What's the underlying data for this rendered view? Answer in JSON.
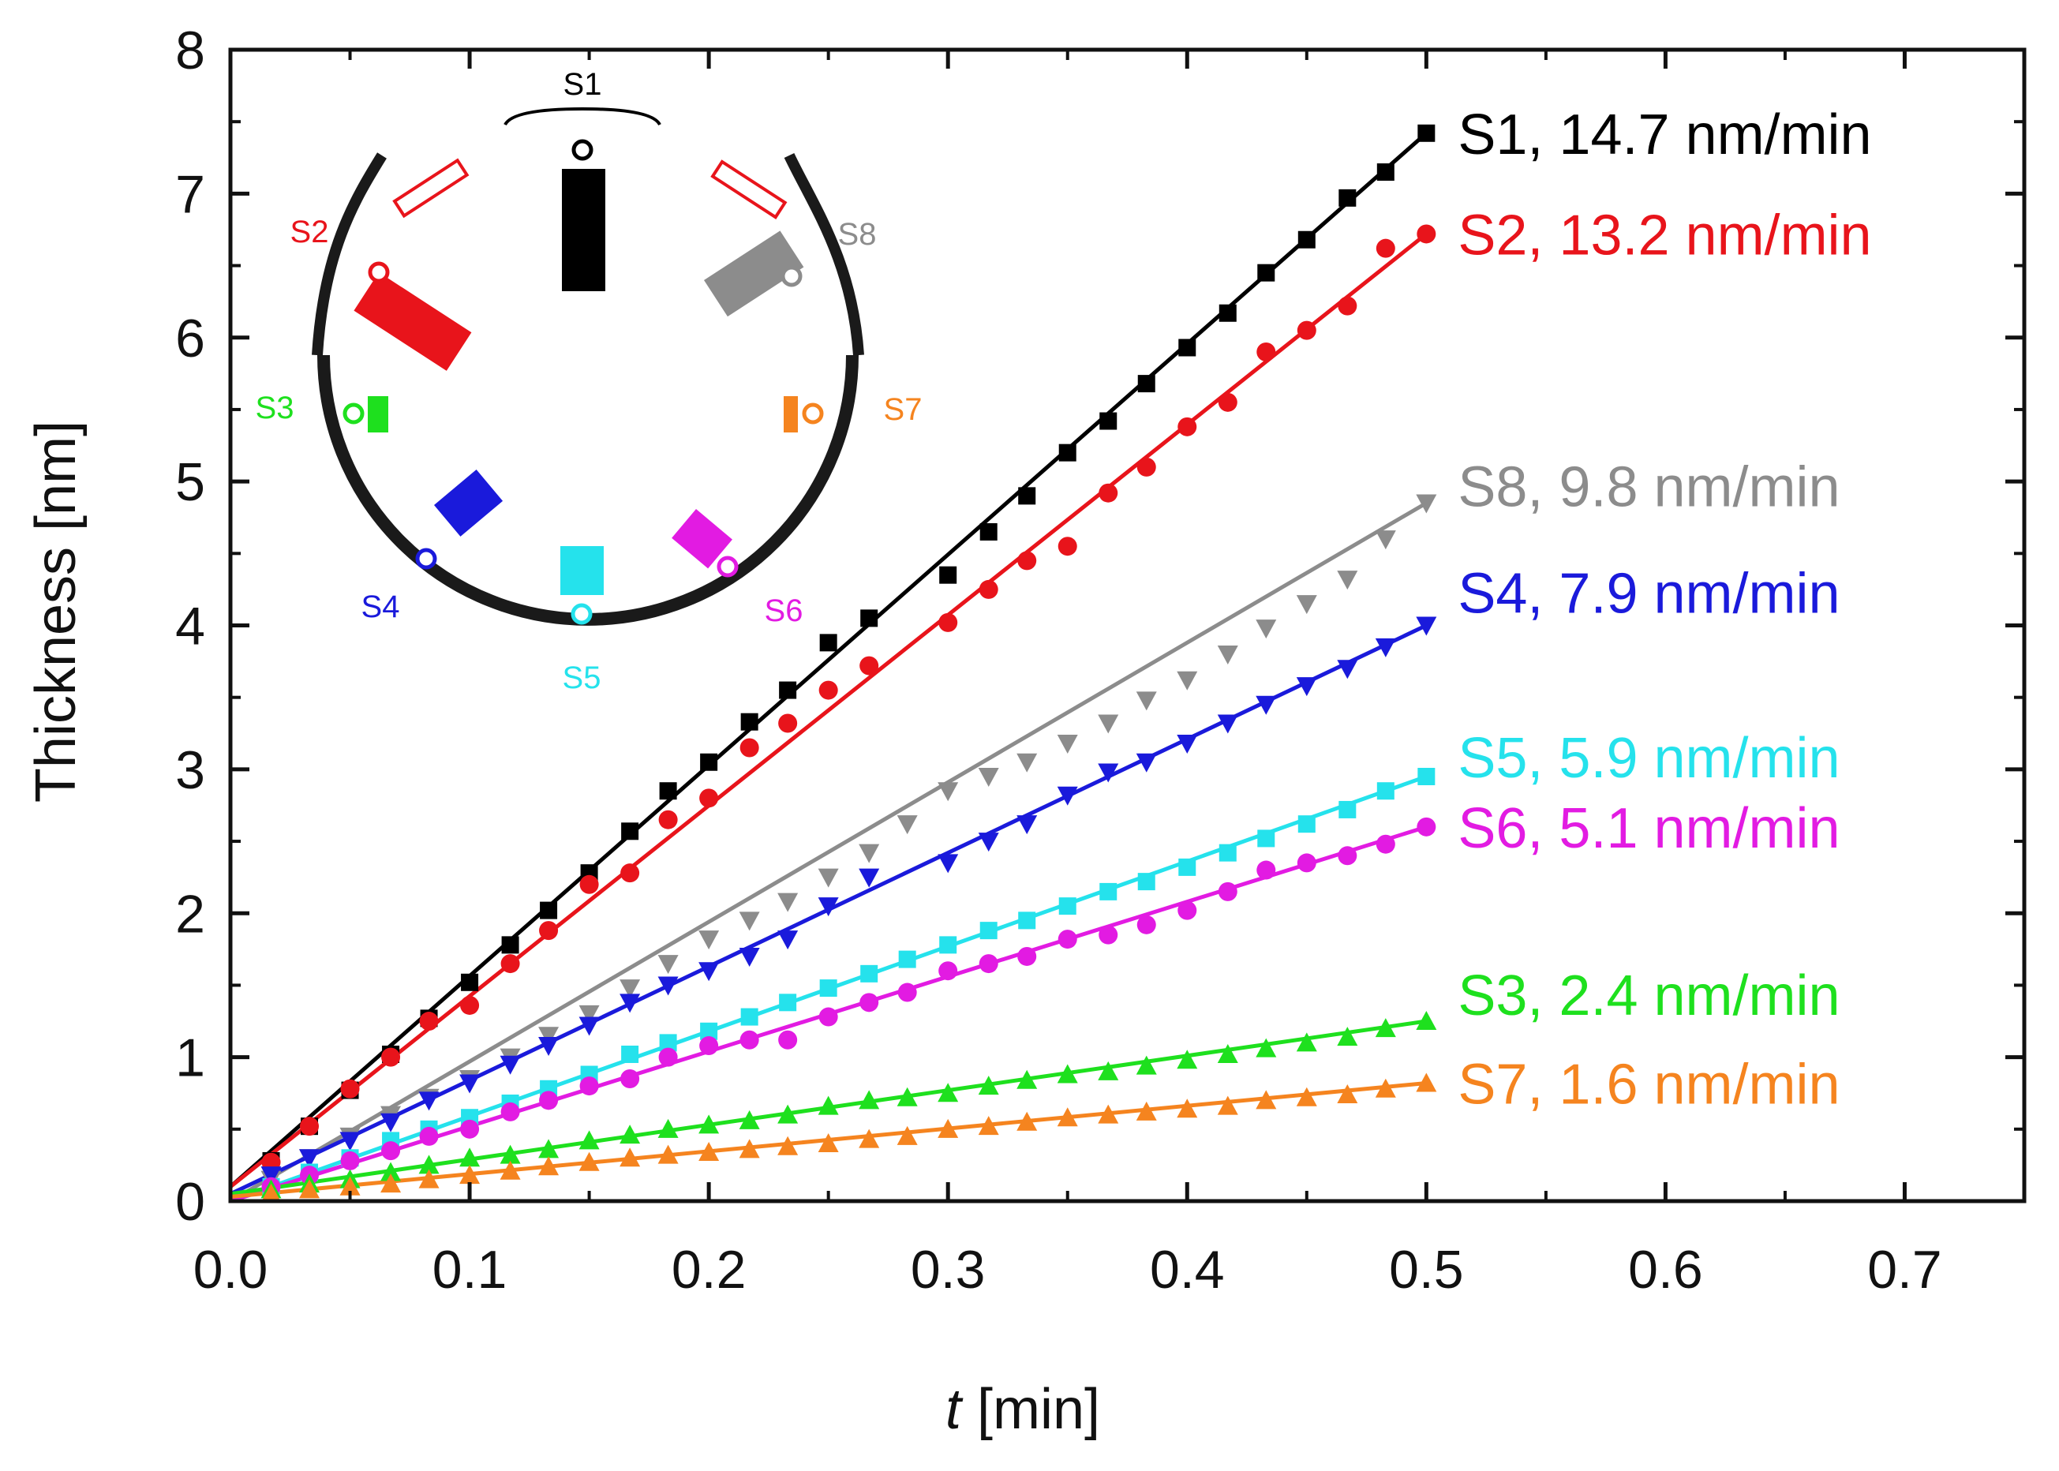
{
  "chart_data": {
    "type": "scatter",
    "title": "",
    "xlabel": {
      "italic": "t",
      "rest": " [min]"
    },
    "ylabel": "Thickness [nm]",
    "xlim": [
      0,
      0.75
    ],
    "ylim": [
      0,
      8
    ],
    "x_ticks": [
      "0.0",
      "0.1",
      "0.2",
      "0.3",
      "0.4",
      "0.5",
      "0.6",
      "0.7"
    ],
    "y_ticks": [
      "0",
      "1",
      "2",
      "3",
      "4",
      "5",
      "6",
      "7",
      "8"
    ],
    "grid": false,
    "series": [
      {
        "name": "S1",
        "label": "S1, 14.7 nm/min",
        "rate_nm_per_min": 14.7,
        "intercept": 0.1,
        "color": "#000000",
        "marker": "square",
        "x": [
          0.017,
          0.033,
          0.05,
          0.067,
          0.083,
          0.1,
          0.117,
          0.133,
          0.15,
          0.167,
          0.183,
          0.2,
          0.217,
          0.233,
          0.25,
          0.267,
          0.3,
          0.317,
          0.333,
          0.35,
          0.367,
          0.383,
          0.4,
          0.417,
          0.433,
          0.45,
          0.467,
          0.483,
          0.5
        ],
        "y": [
          0.28,
          0.52,
          0.77,
          1.02,
          1.27,
          1.52,
          1.78,
          2.02,
          2.28,
          2.57,
          2.85,
          3.05,
          3.33,
          3.55,
          3.88,
          4.05,
          4.35,
          4.65,
          4.9,
          5.2,
          5.42,
          5.68,
          5.93,
          6.17,
          6.45,
          6.68,
          6.97,
          7.15,
          7.42
        ]
      },
      {
        "name": "S2",
        "label": "S2, 13.2 nm/min",
        "rate_nm_per_min": 13.2,
        "intercept": 0.1,
        "color": "#e8141b",
        "marker": "circle",
        "x": [
          0.017,
          0.033,
          0.05,
          0.067,
          0.083,
          0.1,
          0.117,
          0.133,
          0.15,
          0.167,
          0.183,
          0.2,
          0.217,
          0.233,
          0.25,
          0.267,
          0.3,
          0.317,
          0.333,
          0.35,
          0.367,
          0.383,
          0.4,
          0.417,
          0.433,
          0.45,
          0.467,
          0.483,
          0.5
        ],
        "y": [
          0.27,
          0.52,
          0.78,
          1.0,
          1.25,
          1.36,
          1.65,
          1.88,
          2.2,
          2.28,
          2.65,
          2.8,
          3.15,
          3.32,
          3.55,
          3.72,
          4.02,
          4.25,
          4.45,
          4.55,
          4.92,
          5.1,
          5.38,
          5.55,
          5.9,
          6.05,
          6.22,
          6.62,
          6.72
        ]
      },
      {
        "name": "S8",
        "label": "S8, 9.8 nm/min",
        "rate_nm_per_min": 9.8,
        "intercept": 0.0,
        "color": "#8c8c8c",
        "marker": "triangle-down",
        "x": [
          0.017,
          0.033,
          0.05,
          0.067,
          0.083,
          0.1,
          0.117,
          0.133,
          0.15,
          0.167,
          0.183,
          0.2,
          0.217,
          0.233,
          0.25,
          0.267,
          0.283,
          0.3,
          0.317,
          0.333,
          0.35,
          0.367,
          0.383,
          0.4,
          0.417,
          0.433,
          0.45,
          0.467,
          0.483,
          0.5
        ],
        "y": [
          0.15,
          0.3,
          0.45,
          0.6,
          0.72,
          0.85,
          1.0,
          1.15,
          1.3,
          1.48,
          1.65,
          1.82,
          1.95,
          2.08,
          2.25,
          2.42,
          2.62,
          2.85,
          2.95,
          3.05,
          3.18,
          3.32,
          3.48,
          3.62,
          3.8,
          3.98,
          4.15,
          4.32,
          4.6,
          4.85
        ]
      },
      {
        "name": "S4",
        "label": "S4, 7.9 nm/min",
        "rate_nm_per_min": 7.9,
        "intercept": 0.05,
        "color": "#1a1adb",
        "marker": "triangle-down",
        "x": [
          0.017,
          0.033,
          0.05,
          0.067,
          0.083,
          0.1,
          0.117,
          0.133,
          0.15,
          0.167,
          0.183,
          0.2,
          0.217,
          0.233,
          0.25,
          0.267,
          0.3,
          0.317,
          0.333,
          0.35,
          0.367,
          0.383,
          0.4,
          0.417,
          0.433,
          0.45,
          0.467,
          0.483,
          0.5
        ],
        "y": [
          0.18,
          0.3,
          0.42,
          0.55,
          0.7,
          0.82,
          0.95,
          1.08,
          1.22,
          1.38,
          1.5,
          1.6,
          1.7,
          1.82,
          2.05,
          2.25,
          2.35,
          2.5,
          2.62,
          2.82,
          2.98,
          3.05,
          3.18,
          3.32,
          3.45,
          3.58,
          3.7,
          3.85,
          4.0
        ]
      },
      {
        "name": "S5",
        "label": "S5, 5.9 nm/min",
        "rate_nm_per_min": 5.9,
        "intercept": 0.0,
        "color": "#25e2ec",
        "marker": "square",
        "x": [
          0.017,
          0.033,
          0.05,
          0.067,
          0.083,
          0.1,
          0.117,
          0.133,
          0.15,
          0.167,
          0.183,
          0.2,
          0.217,
          0.233,
          0.25,
          0.267,
          0.283,
          0.3,
          0.317,
          0.333,
          0.35,
          0.367,
          0.383,
          0.4,
          0.417,
          0.433,
          0.45,
          0.467,
          0.483,
          0.5
        ],
        "y": [
          0.1,
          0.2,
          0.3,
          0.42,
          0.5,
          0.58,
          0.68,
          0.78,
          0.88,
          1.02,
          1.1,
          1.18,
          1.28,
          1.38,
          1.48,
          1.58,
          1.68,
          1.78,
          1.88,
          1.95,
          2.05,
          2.15,
          2.22,
          2.32,
          2.42,
          2.52,
          2.62,
          2.72,
          2.85,
          2.95
        ]
      },
      {
        "name": "S6",
        "label": "S6, 5.1 nm/min",
        "rate_nm_per_min": 5.1,
        "intercept": 0.0,
        "color": "#e21be2",
        "marker": "circle",
        "x": [
          0.017,
          0.033,
          0.05,
          0.067,
          0.083,
          0.1,
          0.117,
          0.133,
          0.15,
          0.167,
          0.183,
          0.2,
          0.217,
          0.233,
          0.25,
          0.267,
          0.283,
          0.3,
          0.317,
          0.333,
          0.35,
          0.367,
          0.383,
          0.4,
          0.417,
          0.433,
          0.45,
          0.467,
          0.483,
          0.5
        ],
        "y": [
          0.1,
          0.18,
          0.28,
          0.35,
          0.45,
          0.5,
          0.62,
          0.7,
          0.8,
          0.85,
          1.0,
          1.08,
          1.12,
          1.12,
          1.28,
          1.38,
          1.45,
          1.6,
          1.65,
          1.7,
          1.82,
          1.85,
          1.92,
          2.02,
          2.15,
          2.3,
          2.35,
          2.4,
          2.48,
          2.6
        ]
      },
      {
        "name": "S3",
        "label": "S3, 2.4 nm/min",
        "rate_nm_per_min": 2.4,
        "intercept": 0.05,
        "color": "#1ee01e",
        "marker": "triangle-up",
        "x": [
          0.017,
          0.033,
          0.05,
          0.067,
          0.083,
          0.1,
          0.117,
          0.133,
          0.15,
          0.167,
          0.183,
          0.2,
          0.217,
          0.233,
          0.25,
          0.267,
          0.283,
          0.3,
          0.317,
          0.333,
          0.35,
          0.367,
          0.383,
          0.4,
          0.417,
          0.433,
          0.45,
          0.467,
          0.483,
          0.5
        ],
        "y": [
          0.08,
          0.12,
          0.15,
          0.2,
          0.25,
          0.3,
          0.32,
          0.36,
          0.42,
          0.46,
          0.5,
          0.53,
          0.56,
          0.6,
          0.66,
          0.7,
          0.72,
          0.75,
          0.8,
          0.84,
          0.88,
          0.9,
          0.94,
          0.98,
          1.02,
          1.06,
          1.1,
          1.14,
          1.2,
          1.25
        ]
      },
      {
        "name": "S7",
        "label": "S7, 1.6 nm/min",
        "rate_nm_per_min": 1.6,
        "intercept": 0.03,
        "color": "#f5841f",
        "marker": "triangle-up",
        "x": [
          0.017,
          0.033,
          0.05,
          0.067,
          0.083,
          0.1,
          0.117,
          0.133,
          0.15,
          0.167,
          0.183,
          0.2,
          0.217,
          0.233,
          0.25,
          0.267,
          0.283,
          0.3,
          0.317,
          0.333,
          0.35,
          0.367,
          0.383,
          0.4,
          0.417,
          0.433,
          0.45,
          0.467,
          0.483,
          0.5
        ],
        "y": [
          0.05,
          0.08,
          0.1,
          0.12,
          0.15,
          0.18,
          0.21,
          0.24,
          0.27,
          0.3,
          0.32,
          0.34,
          0.36,
          0.38,
          0.4,
          0.43,
          0.45,
          0.5,
          0.52,
          0.55,
          0.58,
          0.6,
          0.62,
          0.64,
          0.66,
          0.7,
          0.72,
          0.74,
          0.78,
          0.82
        ]
      }
    ],
    "inset": {
      "description_labels": [
        "S1",
        "S2",
        "S3",
        "S4",
        "S5",
        "S6",
        "S7",
        "S8"
      ],
      "labels": [
        {
          "text": "S1",
          "color": "#000000"
        },
        {
          "text": "S2",
          "color": "#e8141b"
        },
        {
          "text": "S3",
          "color": "#1ee01e"
        },
        {
          "text": "S4",
          "color": "#1a1adb"
        },
        {
          "text": "S5",
          "color": "#25e2ec"
        },
        {
          "text": "S6",
          "color": "#e21be2"
        },
        {
          "text": "S7",
          "color": "#f5841f"
        },
        {
          "text": "S8",
          "color": "#8c8c8c"
        }
      ]
    }
  }
}
